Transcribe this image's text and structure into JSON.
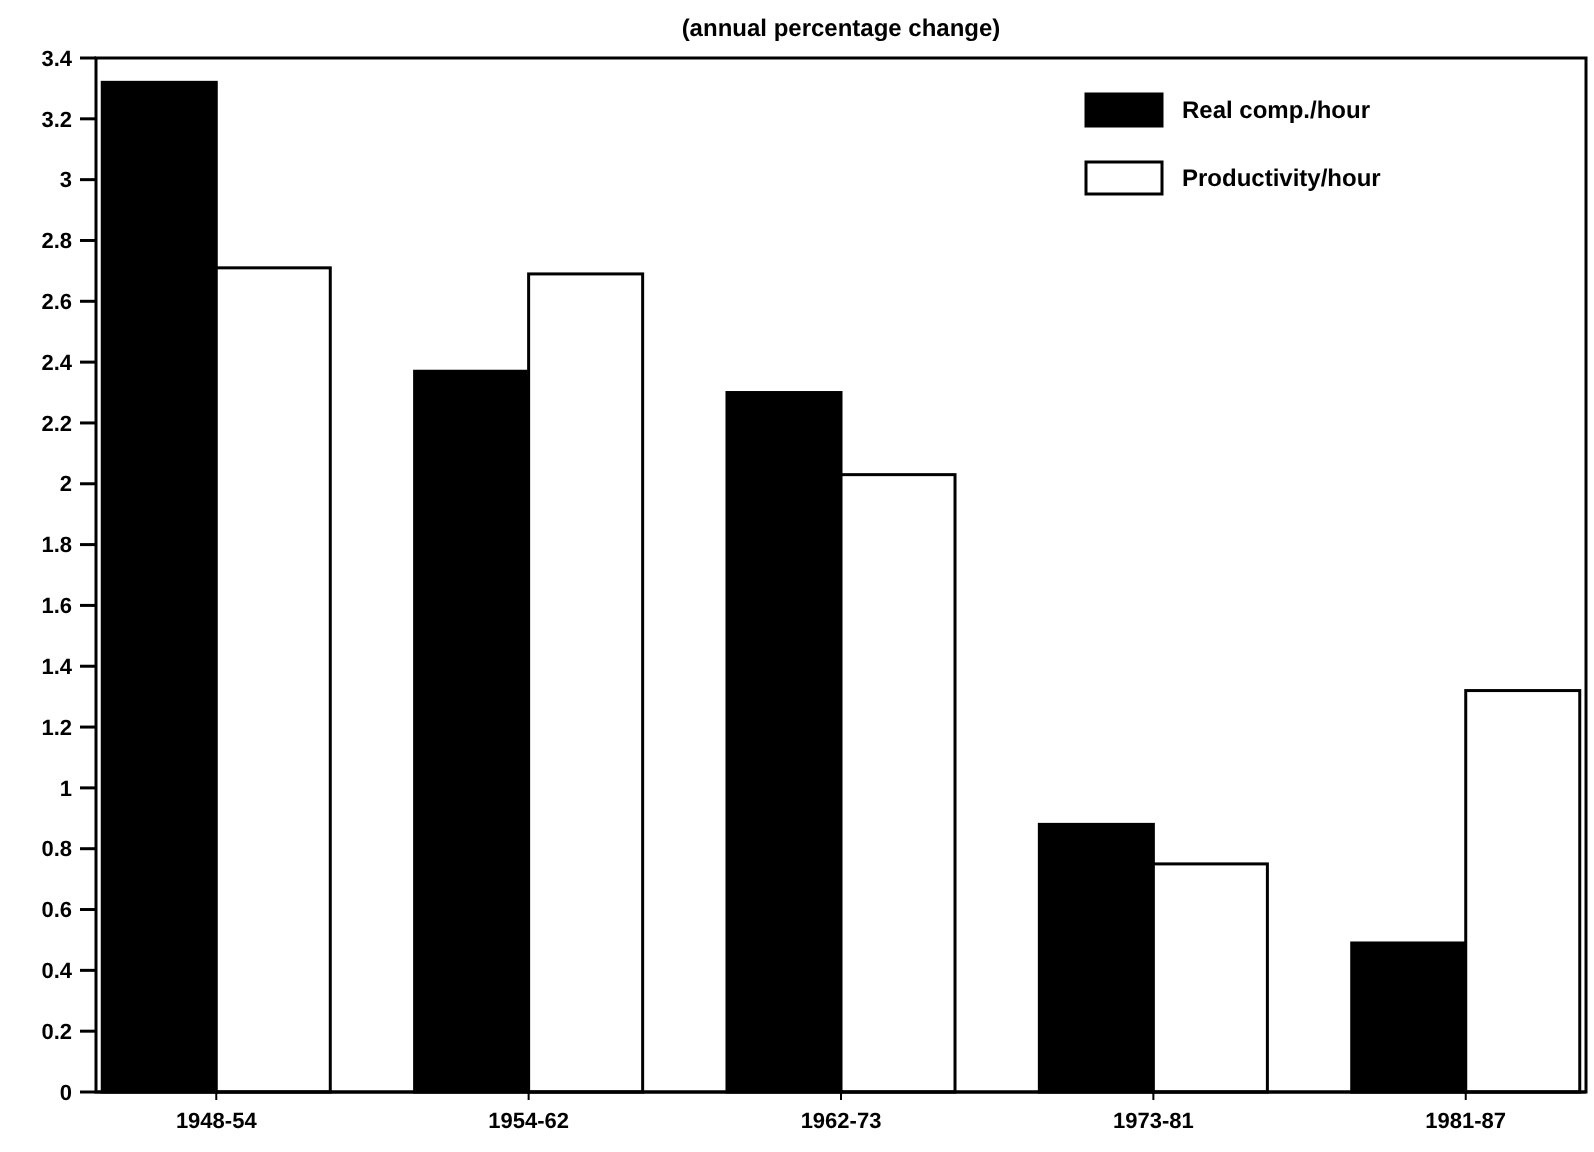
{
  "chart_data": {
    "type": "bar",
    "title": "(annual percentage change)",
    "categories": [
      "1948-54",
      "1954-62",
      "1962-73",
      "1973-81",
      "1981-87"
    ],
    "series": [
      {
        "name": "Real comp./hour",
        "color": "#000000",
        "values": [
          3.32,
          2.37,
          2.3,
          0.88,
          0.49
        ]
      },
      {
        "name": "Productivity/hour",
        "color": "#ffffff",
        "values": [
          2.71,
          2.69,
          2.03,
          0.75,
          1.32
        ]
      }
    ],
    "ylim": [
      0,
      3.4
    ],
    "yticks": [
      0,
      0.2,
      0.4,
      0.6,
      0.8,
      1,
      1.2,
      1.4,
      1.6,
      1.8,
      2,
      2.2,
      2.4,
      2.6,
      2.8,
      3,
      3.2,
      3.4
    ],
    "grid": false,
    "legend": "top right"
  }
}
